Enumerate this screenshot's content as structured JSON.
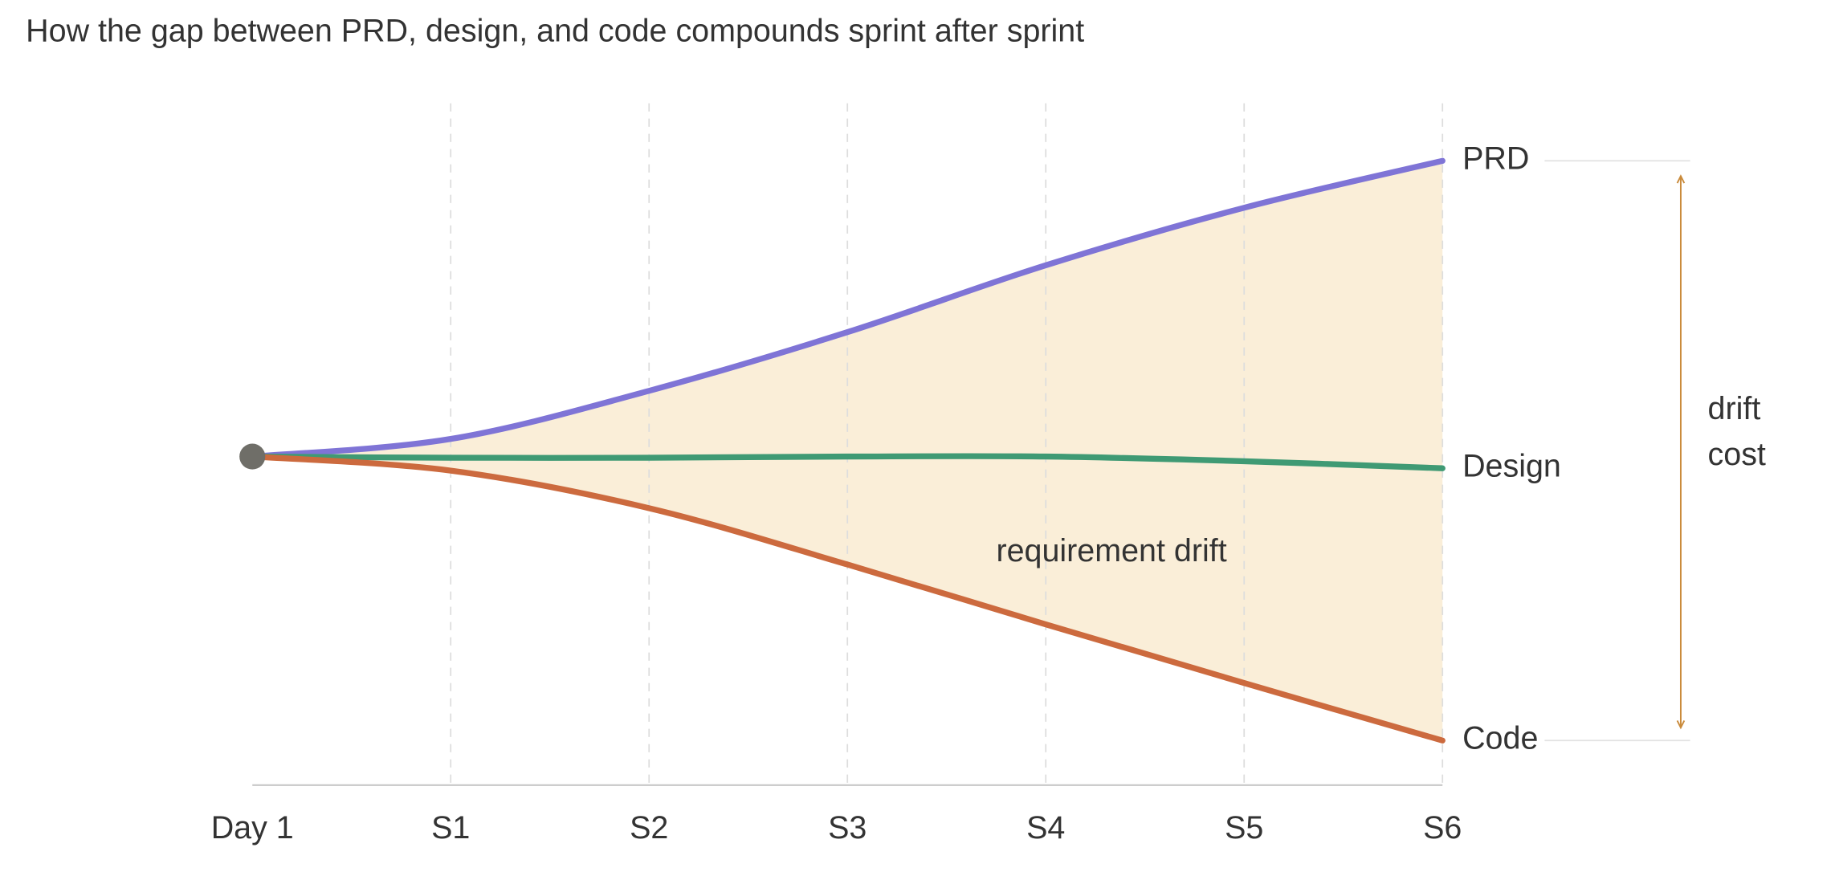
{
  "chart_data": {
    "type": "line",
    "title": "How the gap between PRD, design, and code compounds sprint after sprint",
    "categories": [
      "Day 1",
      "S1",
      "S2",
      "S3",
      "S4",
      "S5",
      "S6"
    ],
    "series": [
      {
        "name": "PRD",
        "color": "#7f74d6",
        "values": [
          0,
          15,
          56,
          106,
          163,
          212,
          252
        ]
      },
      {
        "name": "Design",
        "color": "#3f9a74",
        "values": [
          0,
          -1,
          -1,
          0,
          0,
          -4,
          -10
        ]
      },
      {
        "name": "Code",
        "color": "#cc6a3e",
        "values": [
          0,
          -12,
          -44,
          -92,
          -143,
          -193,
          -242
        ]
      }
    ],
    "ylim": [
      -280,
      280
    ],
    "grid": true,
    "area_color": "#faeed8",
    "area_label": "requirement drift",
    "bracket_label": [
      "drift",
      "cost"
    ],
    "bracket_color": "#c98a3a"
  }
}
